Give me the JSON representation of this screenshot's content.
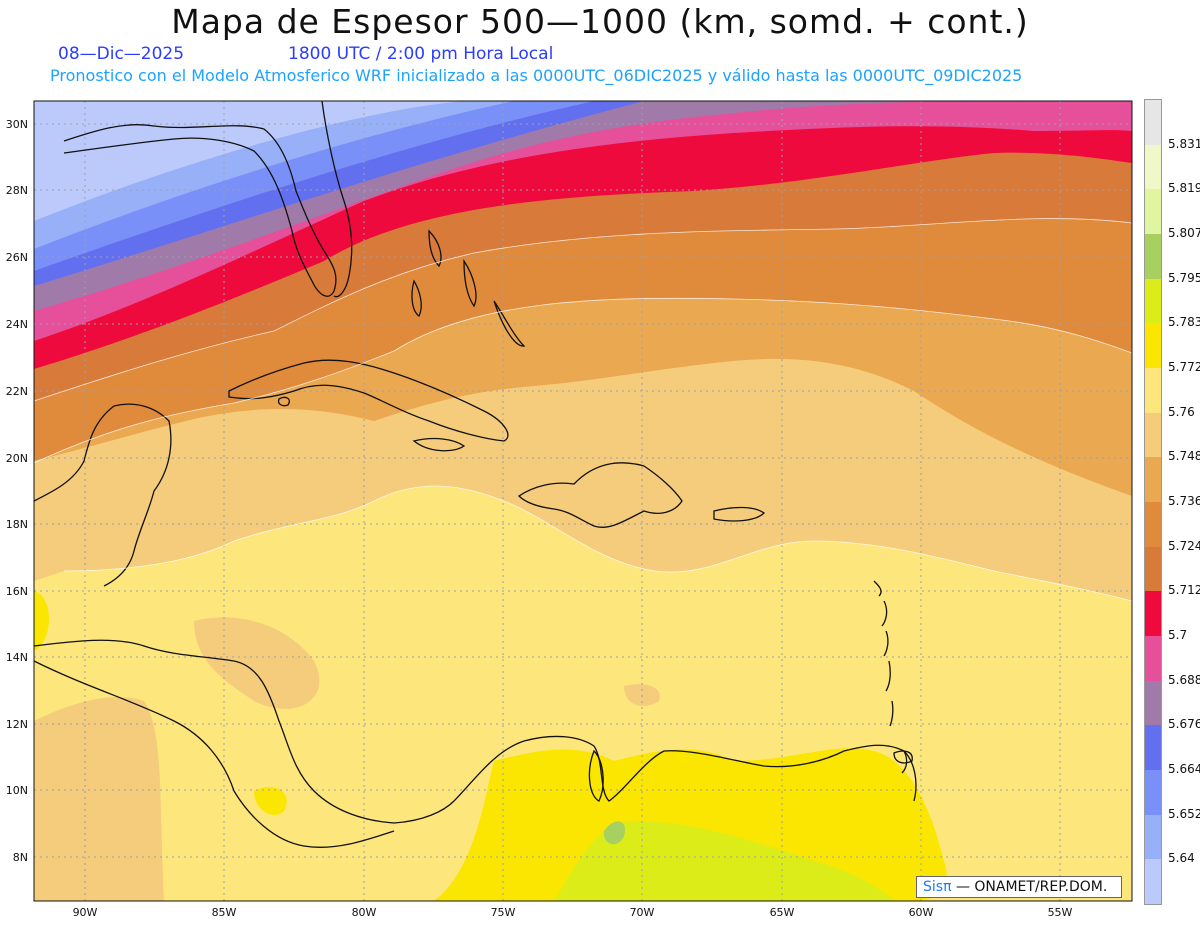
{
  "header": {
    "title": "Mapa de Espesor 500—1000 (km, somd. + cont.)",
    "date": "08—Dic—2025",
    "time": "1800 UTC / 2:00 pm Hora Local",
    "model_info": "Pronostico con el Modelo Atmosferico WRF inicializado a las 0000UTC_06DIC2025 y válido hasta las  0000UTC_09DIC2025"
  },
  "axes": {
    "lon_ticks": [
      "90W",
      "85W",
      "80W",
      "75W",
      "70W",
      "65W",
      "60W",
      "55W"
    ],
    "lat_ticks": [
      "30N",
      "28N",
      "26N",
      "24N",
      "22N",
      "20N",
      "18N",
      "16N",
      "14N",
      "12N",
      "10N",
      "8N"
    ]
  },
  "legend": {
    "labels": [
      "5.831",
      "5.819",
      "5.807",
      "5.795",
      "5.783",
      "5.772",
      "5.76",
      "5.748",
      "5.736",
      "5.724",
      "5.712",
      "5.7",
      "5.688",
      "5.676",
      "5.664",
      "5.652",
      "5.64"
    ],
    "colors_top_to_bottom": [
      "#e6e6e6",
      "#f0f7c8",
      "#e1f5a0",
      "#a8d060",
      "#dcec18",
      "#fae600",
      "#fde67c",
      "#f4cc7c",
      "#eaa850",
      "#e08a3c",
      "#d87a3a",
      "#ee0a3c",
      "#e6509a",
      "#a07aa8",
      "#6270f0",
      "#7890f8",
      "#98b0f8",
      "#bccafb"
    ]
  },
  "map": {
    "field": "500-1000 hPa thickness (km)",
    "bands_north_to_south": [
      {
        "label": "5.64",
        "color": "#bccafb"
      },
      {
        "label": "5.652",
        "color": "#98b0f8"
      },
      {
        "label": "5.664",
        "color": "#7890f8"
      },
      {
        "label": "5.676",
        "color": "#6270f0"
      },
      {
        "label": "5.688",
        "color": "#a07aa8"
      },
      {
        "label": "5.7",
        "color": "#e6509a"
      },
      {
        "label": "5.712",
        "color": "#ee0a3c"
      },
      {
        "label": "5.724",
        "color": "#d87a3a"
      },
      {
        "label": "5.736",
        "color": "#e08a3c"
      },
      {
        "label": "5.748",
        "color": "#eaa850"
      },
      {
        "label": "5.76",
        "color": "#f4cc7c"
      },
      {
        "label": "5.772",
        "color": "#fde67c"
      },
      {
        "label": "5.783",
        "color": "#fae600"
      },
      {
        "label": "5.795",
        "color": "#dcec18"
      }
    ]
  },
  "credit": {
    "brand": "Sisπ",
    "text": "— ONAMET/REP.DOM."
  }
}
